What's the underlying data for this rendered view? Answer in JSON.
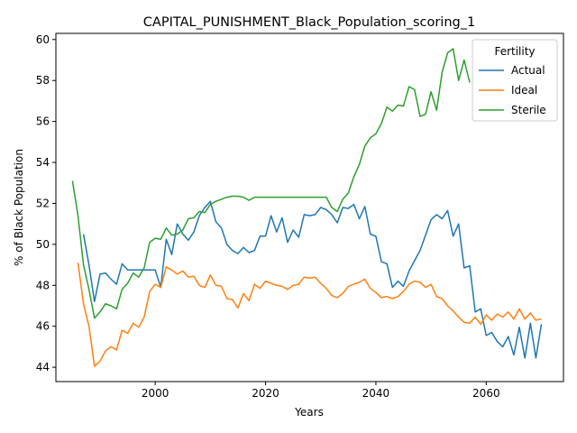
{
  "chart_data": {
    "type": "line",
    "title": "CAPITAL_PUNISHMENT_Black_Population_scoring_1",
    "xlabel": "Years",
    "ylabel": "% of Black Population",
    "xlim": [
      1982,
      2074
    ],
    "ylim": [
      43.3,
      60.3
    ],
    "xticks": [
      2000,
      2020,
      2040,
      2060
    ],
    "yticks": [
      44,
      46,
      48,
      50,
      52,
      54,
      56,
      58,
      60
    ],
    "grid": false,
    "legend": {
      "title": "Fertility",
      "placement": "top-right"
    },
    "series": [
      {
        "name": "Actual",
        "color": "#1f77b4",
        "x": [
          1987,
          1988,
          1989,
          1990,
          1991,
          1992,
          1993,
          1994,
          1995,
          1996,
          1997,
          1998,
          1999,
          2000,
          2001,
          2002,
          2003,
          2004,
          2005,
          2006,
          2007,
          2008,
          2009,
          2010,
          2011,
          2012,
          2013,
          2014,
          2015,
          2016,
          2017,
          2018,
          2019,
          2020,
          2021,
          2022,
          2023,
          2024,
          2025,
          2026,
          2027,
          2028,
          2029,
          2030,
          2031,
          2032,
          2033,
          2034,
          2035,
          2036,
          2037,
          2038,
          2039,
          2040,
          2041,
          2042,
          2043,
          2044,
          2045,
          2046,
          2047,
          2048,
          2049,
          2050,
          2051,
          2052,
          2053,
          2054,
          2055,
          2056,
          2057,
          2058,
          2059,
          2060,
          2061,
          2062,
          2063,
          2064,
          2065,
          2066,
          2067,
          2068,
          2069,
          2070
        ],
        "y": [
          50.5,
          49.0,
          47.2,
          48.55,
          48.6,
          48.3,
          48.05,
          49.05,
          48.75,
          48.75,
          48.75,
          48.75,
          48.75,
          48.75,
          47.9,
          50.25,
          49.5,
          51.0,
          50.5,
          50.2,
          50.6,
          51.4,
          51.8,
          52.1,
          51.1,
          50.8,
          50.0,
          49.7,
          49.55,
          49.85,
          49.6,
          49.7,
          50.4,
          50.4,
          51.4,
          50.6,
          51.3,
          50.1,
          50.7,
          50.35,
          51.45,
          51.4,
          51.45,
          51.8,
          51.7,
          51.45,
          51.05,
          51.8,
          51.75,
          51.95,
          51.25,
          51.85,
          50.5,
          50.4,
          49.15,
          49.05,
          47.9,
          48.2,
          47.95,
          48.7,
          49.2,
          49.7,
          50.45,
          51.2,
          51.45,
          51.25,
          51.65,
          50.4,
          51.0,
          48.85,
          48.95,
          46.7,
          46.85,
          45.55,
          45.7,
          45.25,
          45.0,
          45.5,
          44.6,
          45.95,
          44.45,
          46.15,
          44.45,
          46.1
        ]
      },
      {
        "name": "Ideal",
        "color": "#ff7f0e",
        "x": [
          1986,
          1987,
          1988,
          1989,
          1990,
          1991,
          1992,
          1993,
          1994,
          1995,
          1996,
          1997,
          1998,
          1999,
          2000,
          2001,
          2002,
          2003,
          2004,
          2005,
          2006,
          2007,
          2008,
          2009,
          2010,
          2011,
          2012,
          2013,
          2014,
          2015,
          2016,
          2017,
          2018,
          2019,
          2020,
          2021,
          2022,
          2023,
          2024,
          2025,
          2026,
          2027,
          2028,
          2029,
          2030,
          2031,
          2032,
          2033,
          2034,
          2035,
          2036,
          2037,
          2038,
          2039,
          2040,
          2041,
          2042,
          2043,
          2044,
          2045,
          2046,
          2047,
          2048,
          2049,
          2050,
          2051,
          2052,
          2053,
          2054,
          2055,
          2056,
          2057,
          2058,
          2059,
          2060,
          2061,
          2062,
          2063,
          2064,
          2065,
          2066,
          2067,
          2068,
          2069,
          2070
        ],
        "y": [
          49.1,
          47.1,
          46.0,
          44.05,
          44.3,
          44.8,
          45.0,
          44.85,
          45.8,
          45.65,
          46.15,
          45.95,
          46.45,
          47.7,
          48.05,
          47.9,
          48.9,
          48.75,
          48.55,
          48.7,
          48.4,
          48.45,
          48.0,
          47.9,
          48.5,
          48.0,
          47.95,
          47.35,
          47.3,
          46.9,
          47.6,
          47.25,
          48.05,
          47.85,
          48.2,
          48.1,
          48.0,
          47.95,
          47.8,
          48.0,
          48.05,
          48.4,
          48.35,
          48.4,
          48.1,
          47.85,
          47.5,
          47.4,
          47.6,
          47.95,
          48.05,
          48.15,
          48.3,
          47.85,
          47.65,
          47.4,
          47.45,
          47.35,
          47.45,
          47.7,
          48.05,
          48.2,
          48.15,
          47.9,
          48.05,
          47.45,
          47.35,
          47.0,
          46.75,
          46.45,
          46.2,
          46.15,
          46.45,
          46.1,
          46.55,
          46.3,
          46.6,
          46.45,
          46.7,
          46.35,
          46.85,
          46.35,
          46.65,
          46.3,
          46.35
        ]
      },
      {
        "name": "Sterile",
        "color": "#2ca02c",
        "x": [
          1985,
          1986,
          1987,
          1988,
          1989,
          1990,
          1991,
          1992,
          1993,
          1994,
          1995,
          1996,
          1997,
          1998,
          1999,
          2000,
          2001,
          2002,
          2003,
          2004,
          2005,
          2006,
          2007,
          2008,
          2009,
          2010,
          2011,
          2012,
          2013,
          2014,
          2015,
          2016,
          2017,
          2018,
          2019,
          2020,
          2021,
          2022,
          2023,
          2024,
          2025,
          2026,
          2027,
          2028,
          2029,
          2030,
          2031,
          2032,
          2033,
          2034,
          2035,
          2036,
          2037,
          2038,
          2039,
          2040,
          2041,
          2042,
          2043,
          2044,
          2045,
          2046,
          2047,
          2048,
          2049,
          2050,
          2051,
          2052,
          2053,
          2054,
          2055,
          2056,
          2057
        ],
        "y": [
          53.1,
          51.4,
          49.0,
          47.8,
          46.4,
          46.7,
          47.1,
          47.0,
          46.85,
          47.8,
          48.1,
          48.6,
          48.4,
          48.85,
          50.1,
          50.3,
          50.25,
          50.8,
          50.45,
          50.5,
          50.7,
          51.25,
          51.3,
          51.6,
          51.55,
          51.95,
          52.1,
          52.2,
          52.3,
          52.35,
          52.35,
          52.3,
          52.15,
          52.3,
          52.3,
          52.3,
          52.3,
          52.3,
          52.3,
          52.3,
          52.3,
          52.3,
          52.3,
          52.3,
          52.3,
          52.3,
          52.3,
          51.8,
          51.6,
          52.2,
          52.5,
          53.3,
          53.9,
          54.8,
          55.2,
          55.4,
          55.9,
          56.7,
          56.5,
          56.8,
          56.75,
          57.7,
          57.55,
          56.25,
          56.35,
          57.45,
          56.55,
          58.4,
          59.35,
          59.55,
          58.0,
          59.0,
          57.9
        ]
      }
    ]
  }
}
